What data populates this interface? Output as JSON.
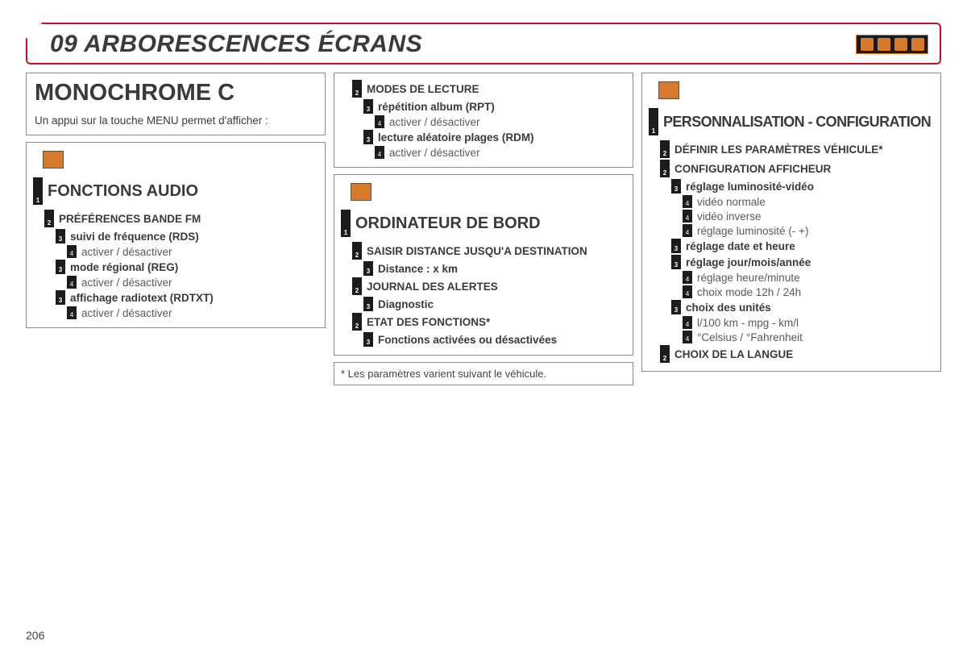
{
  "page_number": "206",
  "header": {
    "title": "09 ARBORESCENCES ÉCRANS"
  },
  "col1": {
    "panel_title": "MONOCHROME C",
    "intro": "Un appui sur la touche MENU permet d'afficher :",
    "tree": [
      {
        "level": 1,
        "text": "FONCTIONS AUDIO",
        "bold": true
      },
      {
        "level": 2,
        "text": "PRÉFÉRENCES BANDE FM",
        "bold": true
      },
      {
        "level": 3,
        "text": "suivi de fréquence (RDS)",
        "bold": true
      },
      {
        "level": 4,
        "text": "activer / désactiver"
      },
      {
        "level": 3,
        "text": "mode régional (REG)",
        "bold": true
      },
      {
        "level": 4,
        "text": "activer / désactiver"
      },
      {
        "level": 3,
        "text": "affichage radiotext (RDTXT)",
        "bold": true
      },
      {
        "level": 4,
        "text": "activer / désactiver"
      }
    ]
  },
  "col2": {
    "top_tree": [
      {
        "level": 2,
        "text": "MODES DE LECTURE",
        "bold": true
      },
      {
        "level": 3,
        "text": "répétition album (RPT)",
        "bold": true
      },
      {
        "level": 4,
        "text": "activer / désactiver"
      },
      {
        "level": 3,
        "text": "lecture aléatoire plages (RDM)",
        "bold": true
      },
      {
        "level": 4,
        "text": "activer / désactiver"
      }
    ],
    "mid_tree": [
      {
        "level": 1,
        "text": "ORDINATEUR DE BORD",
        "bold": true
      },
      {
        "level": 2,
        "text": "SAISIR DISTANCE JUSQU'A DESTINATION",
        "bold": true
      },
      {
        "level": 3,
        "text": "Distance : x km",
        "bold": true
      },
      {
        "level": 2,
        "text": "JOURNAL DES ALERTES",
        "bold": true
      },
      {
        "level": 3,
        "text": "Diagnostic",
        "bold": true
      },
      {
        "level": 2,
        "text": "ETAT DES FONCTIONS*",
        "bold": true
      },
      {
        "level": 3,
        "text": "Fonctions activées ou désactivées",
        "bold": true
      }
    ],
    "footnote": "* Les paramètres varient suivant le véhicule."
  },
  "col3": {
    "tree": [
      {
        "level": 1,
        "text": "PERSONNALISATION - CONFIGURATION",
        "bold": true,
        "condensed": true
      },
      {
        "level": 2,
        "text": "DÉFINIR LES PARAMÈTRES VÉHICULE*",
        "bold": true
      },
      {
        "level": 2,
        "text": "CONFIGURATION AFFICHEUR",
        "bold": true
      },
      {
        "level": 3,
        "text": "réglage luminosité-vidéo",
        "bold": true
      },
      {
        "level": 4,
        "text": "vidéo normale"
      },
      {
        "level": 4,
        "text": "vidéo inverse"
      },
      {
        "level": 4,
        "text": "réglage luminosité (- +)"
      },
      {
        "level": 3,
        "text": "réglage date et heure",
        "bold": true
      },
      {
        "level": 3,
        "text": "réglage jour/mois/année",
        "bold": true
      },
      {
        "level": 4,
        "text": "réglage heure/minute"
      },
      {
        "level": 4,
        "text": "choix mode 12h / 24h"
      },
      {
        "level": 3,
        "text": "choix des unités",
        "bold": true
      },
      {
        "level": 4,
        "text": "l/100 km - mpg - km/l"
      },
      {
        "level": 4,
        "text": "°Celsius / °Fahrenheit"
      },
      {
        "level": 2,
        "text": "CHOIX DE LA LANGUE",
        "bold": true
      }
    ]
  }
}
